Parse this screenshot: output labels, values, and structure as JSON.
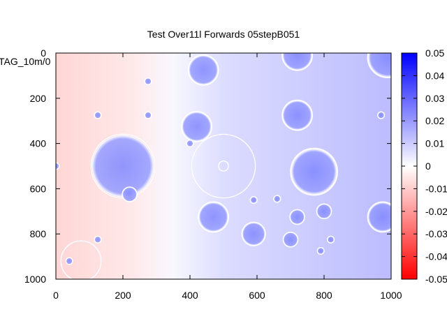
{
  "chart_data": {
    "type": "heatmap",
    "title": "Test Over11l Forwards 05stepB051",
    "overlay_text": "TAG_10m/0",
    "xlim": [
      0,
      1000
    ],
    "ylim": [
      0,
      1000
    ],
    "y_inverted": true,
    "x_ticks": [
      "0",
      "200",
      "400",
      "600",
      "800",
      "1000"
    ],
    "y_ticks": [
      "0",
      "200",
      "400",
      "600",
      "800",
      "1000"
    ],
    "colorbar": {
      "range": [
        -0.05,
        0.05
      ],
      "ticks": [
        "0.05",
        "0.04",
        "0.03",
        "0.02",
        "0.01",
        "0",
        "-0.01",
        "-0.02",
        "-0.03",
        "-0.04",
        "-0.05"
      ],
      "colors": {
        "max": "#0000ff",
        "mid": "#ffffff",
        "min": "#ff0000"
      }
    },
    "background_field": {
      "description_units": "data units; value is colormap value",
      "regions": [
        {
          "x": [
            0,
            220
          ],
          "value": -0.015
        },
        {
          "x": [
            220,
            450
          ],
          "value": -0.002
        },
        {
          "x": [
            450,
            1000
          ],
          "value": 0.012
        }
      ]
    },
    "features": [
      {
        "cx": 440,
        "cy": 75,
        "r": 45,
        "value": 0.02
      },
      {
        "cx": 720,
        "cy": 10,
        "r": 45,
        "value": 0.02
      },
      {
        "cx": 990,
        "cy": 20,
        "r": 60,
        "value": 0.05
      },
      {
        "cx": 275,
        "cy": 125,
        "r": 10,
        "value": 0.02
      },
      {
        "cx": 125,
        "cy": 275,
        "r": 10,
        "value": 0.02
      },
      {
        "cx": 275,
        "cy": 275,
        "r": 10,
        "value": 0.02
      },
      {
        "cx": 420,
        "cy": 325,
        "r": 45,
        "value": 0.02
      },
      {
        "cx": 720,
        "cy": 275,
        "r": 45,
        "value": 0.02
      },
      {
        "cx": 970,
        "cy": 275,
        "r": 10,
        "value": 0.02
      },
      {
        "cx": 400,
        "cy": 400,
        "r": 10,
        "value": 0.02
      },
      {
        "cx": 200,
        "cy": 500,
        "r": 95,
        "value": 0.02
      },
      {
        "cx": 500,
        "cy": 500,
        "r": 95,
        "value": 0.005
      },
      {
        "cx": 500,
        "cy": 500,
        "r": 15,
        "value": 0.005
      },
      {
        "cx": 0,
        "cy": 500,
        "r": 10,
        "value": 0.02
      },
      {
        "cx": 770,
        "cy": 525,
        "r": 70,
        "value": 0.04
      },
      {
        "cx": 220,
        "cy": 625,
        "r": 22,
        "value": 0.02
      },
      {
        "cx": 590,
        "cy": 650,
        "r": 10,
        "value": 0.02
      },
      {
        "cx": 660,
        "cy": 645,
        "r": 10,
        "value": 0.02
      },
      {
        "cx": 470,
        "cy": 725,
        "r": 45,
        "value": 0.02
      },
      {
        "cx": 720,
        "cy": 725,
        "r": 22,
        "value": 0.02
      },
      {
        "cx": 800,
        "cy": 700,
        "r": 22,
        "value": 0.02
      },
      {
        "cx": 975,
        "cy": 725,
        "r": 45,
        "value": 0.04
      },
      {
        "cx": 590,
        "cy": 800,
        "r": 35,
        "value": 0.02
      },
      {
        "cx": 125,
        "cy": 825,
        "r": 10,
        "value": 0.02
      },
      {
        "cx": 700,
        "cy": 825,
        "r": 22,
        "value": 0.02
      },
      {
        "cx": 820,
        "cy": 825,
        "r": 10,
        "value": 0.02
      },
      {
        "cx": 790,
        "cy": 875,
        "r": 10,
        "value": 0.02
      },
      {
        "cx": 75,
        "cy": 920,
        "r": 60,
        "value": -0.005
      },
      {
        "cx": 40,
        "cy": 920,
        "r": 10,
        "value": 0.02
      }
    ]
  }
}
